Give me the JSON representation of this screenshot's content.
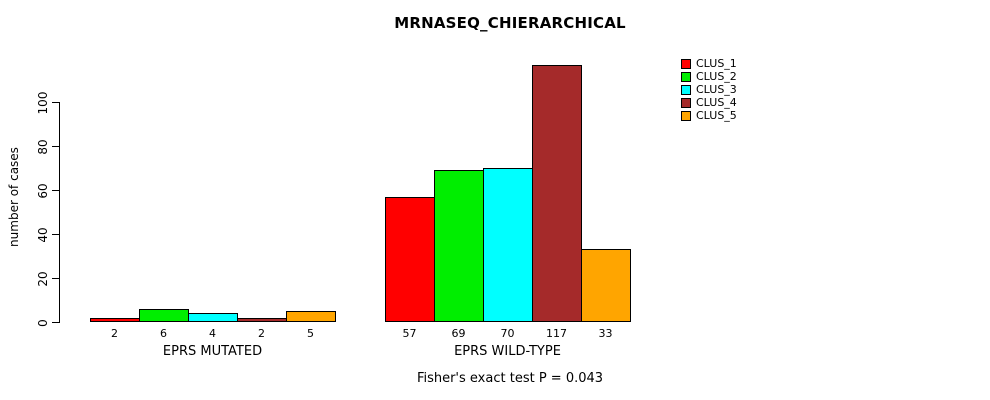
{
  "chart_data": {
    "type": "bar",
    "title": "MRNASEQ_CHIERARCHICAL",
    "ylabel": "number of cases",
    "xlabel": "",
    "categories": [
      "EPRS MUTATED",
      "EPRS WILD-TYPE"
    ],
    "series": [
      {
        "name": "CLUS_1",
        "color": "#FF0000",
        "values": [
          2,
          57
        ]
      },
      {
        "name": "CLUS_2",
        "color": "#00EE00",
        "values": [
          6,
          69
        ]
      },
      {
        "name": "CLUS_3",
        "color": "#00FFFF",
        "values": [
          4,
          70
        ]
      },
      {
        "name": "CLUS_4",
        "color": "#A52A2A",
        "values": [
          2,
          117
        ]
      },
      {
        "name": "CLUS_5",
        "color": "#FFA500",
        "values": [
          5,
          33
        ]
      }
    ],
    "yticks": [
      0,
      20,
      40,
      60,
      80,
      100
    ],
    "ylim": [
      0,
      120
    ],
    "grid": false,
    "legend_position": "top-right",
    "values_shown_under_bars": true,
    "annotation": "Fisher's exact test P = 0.043"
  }
}
